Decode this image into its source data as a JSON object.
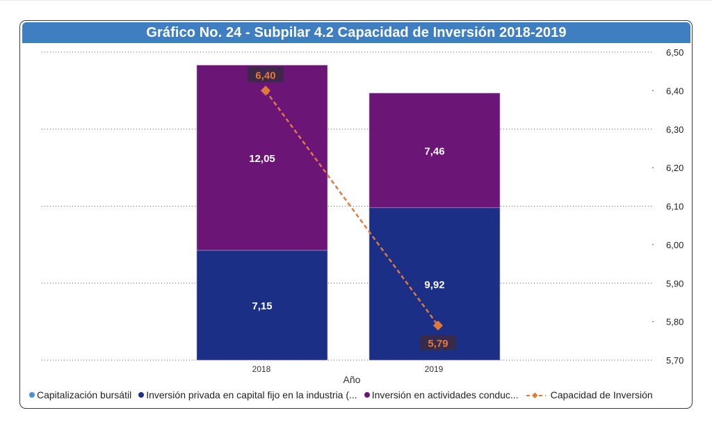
{
  "title": "Gráfico No. 24 - Subpilar 4.2 Capacidad de Inversión 2018-2019",
  "chart_data": {
    "type": "bar",
    "title": "Gráfico No. 24 - Subpilar 4.2 Capacidad de Inversión 2018-2019",
    "xlabel": "Año",
    "ylabel": "",
    "categories": [
      "2018",
      "2019"
    ],
    "stacked": true,
    "series": [
      {
        "name": "Capitalización bursátil",
        "type": "bar",
        "color": "#4a8fd6",
        "values": [
          0,
          0
        ],
        "labels": [
          "",
          ""
        ]
      },
      {
        "name": "Inversión privada en capital fijo en la industria (...",
        "type": "bar",
        "color": "#1b2f86",
        "values": [
          7.15,
          9.92
        ],
        "labels": [
          "7,15",
          "9,92"
        ]
      },
      {
        "name": "Inversión en actividades conduc...",
        "type": "bar",
        "color": "#6b1577",
        "values": [
          12.05,
          7.46
        ],
        "labels": [
          "12,05",
          "7,46"
        ]
      },
      {
        "name": "Capacidad de Inversión",
        "type": "line",
        "color": "#e07a3c",
        "axis": "right",
        "style": "dashed",
        "marker": "diamond",
        "values": [
          6.4,
          5.79
        ],
        "labels": [
          "6,40",
          "5,79"
        ]
      }
    ],
    "bar_axis_range": [
      0,
      20
    ],
    "right_axis": {
      "range": [
        5.7,
        6.5
      ],
      "ticks": [
        "6,50",
        "6,40",
        "6,30",
        "6,20",
        "6,10",
        "6,00",
        "5,90",
        "5,80",
        "5,70"
      ],
      "tick_values": [
        6.5,
        6.4,
        6.3,
        6.2,
        6.1,
        6.0,
        5.9,
        5.8,
        5.7
      ]
    },
    "grid": "dotted horizontal at alternate ticks",
    "legend": "bottom"
  },
  "legend": [
    {
      "label": "Capitalización bursátil",
      "color": "#4a8fd6",
      "kind": "dot"
    },
    {
      "label": "Inversión privada en capital fijo en la industria (...",
      "color": "#1b2f86",
      "kind": "dot"
    },
    {
      "label": "Inversión en actividades conduc...",
      "color": "#6b1577",
      "kind": "dot"
    },
    {
      "label": "Capacidad de Inversión",
      "color": "#e07a3c",
      "kind": "line-diamond"
    }
  ]
}
